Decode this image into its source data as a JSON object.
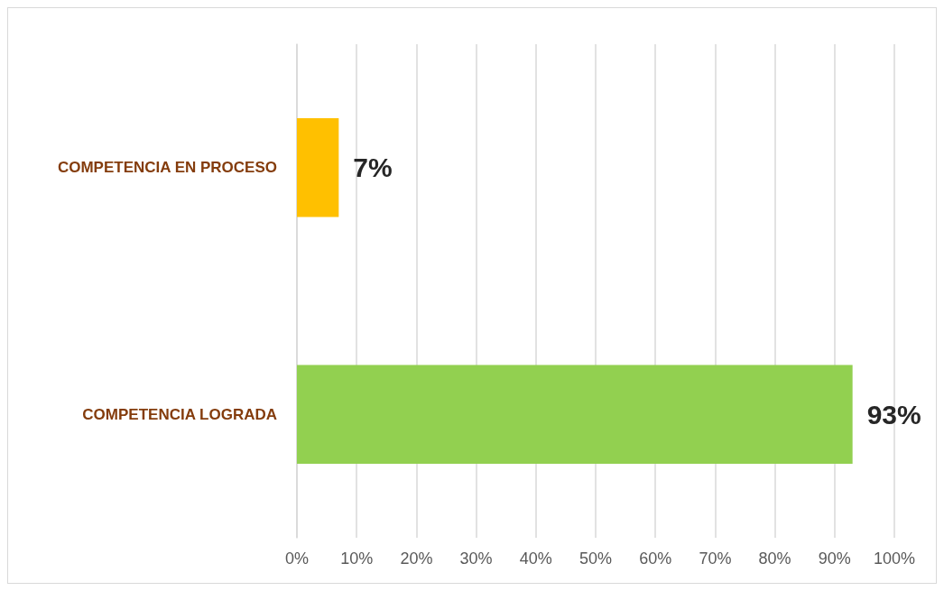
{
  "chart_data": {
    "type": "bar",
    "orientation": "horizontal",
    "categories": [
      "COMPETENCIA EN PROCESO",
      "COMPETENCIA LOGRADA"
    ],
    "values": [
      7,
      93
    ],
    "colors": [
      "#ffc000",
      "#92d050"
    ],
    "value_labels": [
      "7%",
      "93%"
    ],
    "xlim": [
      0,
      100
    ],
    "xticks": [
      {
        "value": 0,
        "label": "0%"
      },
      {
        "value": 10,
        "label": "10%"
      },
      {
        "value": 20,
        "label": "20%"
      },
      {
        "value": 30,
        "label": "30%"
      },
      {
        "value": 40,
        "label": "40%"
      },
      {
        "value": 50,
        "label": "50%"
      },
      {
        "value": 60,
        "label": "60%"
      },
      {
        "value": 70,
        "label": "70%"
      },
      {
        "value": 80,
        "label": "80%"
      },
      {
        "value": 90,
        "label": "90%"
      },
      {
        "value": 100,
        "label": "100%"
      }
    ],
    "grid": "x"
  }
}
